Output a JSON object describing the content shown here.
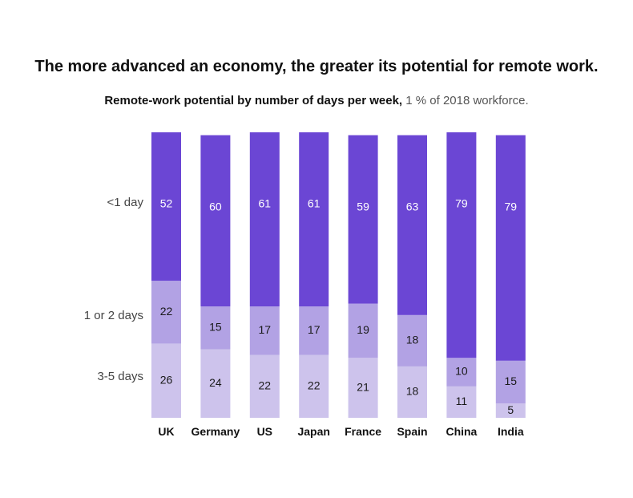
{
  "chart_data": {
    "type": "bar",
    "stacked": true,
    "title": "The more advanced an economy, the greater its potential for remote work.",
    "subtitle_bold": "Remote-work potential by number of days per week,",
    "subtitle_light": " 1 % of 2018 workforce.",
    "categories": [
      "UK",
      "Germany",
      "US",
      "Japan",
      "France",
      "Spain",
      "China",
      "India"
    ],
    "series": [
      {
        "name": "3-5 days",
        "values": [
          26,
          24,
          22,
          22,
          21,
          18,
          11,
          5
        ],
        "color": "#cdc3ec",
        "label_color": "#1a1a1a"
      },
      {
        "name": "1 or 2 days",
        "values": [
          22,
          15,
          17,
          17,
          19,
          18,
          10,
          15
        ],
        "color": "#b2a2e4",
        "label_color": "#1a1a1a"
      },
      {
        "name": "<1 day",
        "values": [
          52,
          60,
          61,
          61,
          59,
          63,
          79,
          79
        ],
        "color": "#6b46d4",
        "label_color": "#ffffff"
      }
    ],
    "row_labels": [
      "<1 day",
      "1 or 2 days",
      "3-5 days"
    ],
    "ylim": [
      0,
      100
    ]
  }
}
